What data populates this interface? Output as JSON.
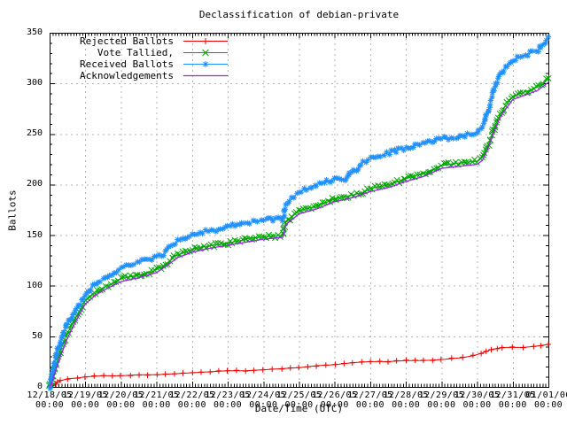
{
  "chart_data": {
    "type": "line",
    "title": "Declassification of debian-private",
    "xlabel": "Date/Time (UTC)",
    "ylabel": "Ballots",
    "ylim": [
      0,
      350
    ],
    "y_tick_step": 50,
    "y_minor_step": 10,
    "x_span_days": 14,
    "grid": true,
    "legend_position": "top-left-inside",
    "background": "#ffffff",
    "grid_color": "#b3b3b3",
    "axis_color": "#000000",
    "x_ticks": [
      {
        "date": "12/18/05",
        "time": "00:00"
      },
      {
        "date": "12/19/05",
        "time": "00:00"
      },
      {
        "date": "12/20/05",
        "time": "00:00"
      },
      {
        "date": "12/21/05",
        "time": "00:00"
      },
      {
        "date": "12/22/05",
        "time": "00:00"
      },
      {
        "date": "12/23/05",
        "time": "00:00"
      },
      {
        "date": "12/24/05",
        "time": "00:00"
      },
      {
        "date": "12/25/05",
        "time": "00:00"
      },
      {
        "date": "12/26/05",
        "time": "00:00"
      },
      {
        "date": "12/27/05",
        "time": "00:00"
      },
      {
        "date": "12/28/05",
        "time": "00:00"
      },
      {
        "date": "12/29/05",
        "time": "00:00"
      },
      {
        "date": "12/30/05",
        "time": "00:00"
      },
      {
        "date": "12/31/05",
        "time": "00:00"
      },
      {
        "date": "01/01/06",
        "time": "00:00"
      }
    ],
    "y_ticks": [
      0,
      50,
      100,
      150,
      200,
      250,
      300,
      350
    ],
    "series": [
      {
        "name": "rejected-ballots",
        "label": "Rejected Ballots",
        "color": "#ee0000",
        "marker": "plus",
        "marker_density_per_day": 2.6,
        "jitter": 0.5,
        "points": [
          [
            0,
            0
          ],
          [
            0.15,
            3
          ],
          [
            0.3,
            6
          ],
          [
            0.5,
            8
          ],
          [
            0.8,
            9
          ],
          [
            1,
            10
          ],
          [
            1.5,
            11
          ],
          [
            2,
            11
          ],
          [
            2.5,
            12
          ],
          [
            3,
            12
          ],
          [
            3.5,
            13
          ],
          [
            4,
            14
          ],
          [
            4.5,
            15
          ],
          [
            5,
            16
          ],
          [
            5.5,
            16
          ],
          [
            6,
            17
          ],
          [
            6.5,
            18
          ],
          [
            7,
            19
          ],
          [
            7.5,
            21
          ],
          [
            8,
            22
          ],
          [
            8.5,
            24
          ],
          [
            9,
            25
          ],
          [
            9.5,
            25
          ],
          [
            10,
            26
          ],
          [
            10.5,
            26
          ],
          [
            11,
            27
          ],
          [
            11.3,
            28
          ],
          [
            11.6,
            29
          ],
          [
            11.9,
            31
          ],
          [
            12.1,
            33
          ],
          [
            12.25,
            35
          ],
          [
            12.4,
            37
          ],
          [
            12.55,
            38
          ],
          [
            12.7,
            39
          ],
          [
            13,
            39
          ],
          [
            13.3,
            39
          ],
          [
            13.6,
            40
          ],
          [
            13.8,
            41
          ],
          [
            14,
            42
          ]
        ]
      },
      {
        "name": "vote-tallied",
        "label": "Vote Tallied,",
        "color": "#00a400",
        "marker": "cross",
        "marker_density_per_day": 13,
        "jitter": 2.0,
        "points": [
          [
            0,
            0
          ],
          [
            0.06,
            6
          ],
          [
            0.12,
            14
          ],
          [
            0.25,
            30
          ],
          [
            0.4,
            45
          ],
          [
            0.6,
            60
          ],
          [
            0.8,
            73
          ],
          [
            1,
            85
          ],
          [
            1.2,
            92
          ],
          [
            1.5,
            98
          ],
          [
            1.8,
            103
          ],
          [
            2,
            107
          ],
          [
            2.4,
            110
          ],
          [
            2.8,
            113
          ],
          [
            3,
            116
          ],
          [
            3.25,
            121
          ],
          [
            3.5,
            129
          ],
          [
            3.8,
            133
          ],
          [
            4,
            136
          ],
          [
            4.4,
            139
          ],
          [
            4.8,
            141
          ],
          [
            5,
            142
          ],
          [
            5.4,
            145
          ],
          [
            5.6,
            147
          ],
          [
            6,
            148
          ],
          [
            6.55,
            150
          ],
          [
            6.62,
            162
          ],
          [
            6.8,
            168
          ],
          [
            7,
            174
          ],
          [
            7.4,
            178
          ],
          [
            7.8,
            183
          ],
          [
            8,
            186
          ],
          [
            8.4,
            189
          ],
          [
            8.8,
            192
          ],
          [
            9,
            196
          ],
          [
            9.4,
            199
          ],
          [
            9.8,
            203
          ],
          [
            10,
            206
          ],
          [
            10.4,
            210
          ],
          [
            10.7,
            214
          ],
          [
            11,
            219
          ],
          [
            11.4,
            221
          ],
          [
            12,
            223
          ],
          [
            12.15,
            227
          ],
          [
            12.3,
            238
          ],
          [
            12.45,
            253
          ],
          [
            12.6,
            266
          ],
          [
            12.75,
            275
          ],
          [
            13,
            287
          ],
          [
            13.3,
            291
          ],
          [
            13.6,
            295
          ],
          [
            13.8,
            299
          ],
          [
            14,
            305
          ]
        ]
      },
      {
        "name": "received-ballots",
        "label": "Received Ballots",
        "color": "#1e90ff",
        "marker": "star",
        "marker_density_per_day": 13,
        "jitter": 2.0,
        "points": [
          [
            0,
            0
          ],
          [
            0.05,
            8
          ],
          [
            0.1,
            18
          ],
          [
            0.2,
            34
          ],
          [
            0.3,
            46
          ],
          [
            0.5,
            62
          ],
          [
            0.75,
            78
          ],
          [
            1,
            89
          ],
          [
            1.15,
            97
          ],
          [
            1.3,
            103
          ],
          [
            1.5,
            106
          ],
          [
            1.75,
            110
          ],
          [
            2,
            117
          ],
          [
            2.3,
            121
          ],
          [
            2.6,
            124
          ],
          [
            3,
            129
          ],
          [
            3.2,
            131
          ],
          [
            3.4,
            139
          ],
          [
            3.6,
            144
          ],
          [
            4,
            150
          ],
          [
            4.3,
            153
          ],
          [
            4.6,
            155
          ],
          [
            5,
            158
          ],
          [
            5.4,
            162
          ],
          [
            5.7,
            163
          ],
          [
            6,
            165
          ],
          [
            6.55,
            166
          ],
          [
            6.62,
            179
          ],
          [
            6.8,
            186
          ],
          [
            7,
            193
          ],
          [
            7.3,
            197
          ],
          [
            7.5,
            200
          ],
          [
            8,
            205
          ],
          [
            8.35,
            206
          ],
          [
            8.42,
            212
          ],
          [
            8.6,
            214
          ],
          [
            8.8,
            222
          ],
          [
            9,
            226
          ],
          [
            9.3,
            229
          ],
          [
            9.6,
            232
          ],
          [
            10,
            236
          ],
          [
            10.4,
            240
          ],
          [
            10.8,
            244
          ],
          [
            11,
            245
          ],
          [
            11.4,
            247
          ],
          [
            11.8,
            250
          ],
          [
            12,
            252
          ],
          [
            12.15,
            258
          ],
          [
            12.3,
            272
          ],
          [
            12.45,
            292
          ],
          [
            12.6,
            306
          ],
          [
            12.75,
            314
          ],
          [
            12.9,
            320
          ],
          [
            13,
            323
          ],
          [
            13.2,
            326
          ],
          [
            13.5,
            330
          ],
          [
            13.7,
            333
          ],
          [
            13.85,
            339
          ],
          [
            14,
            346
          ]
        ]
      },
      {
        "name": "acknowledgements",
        "label": "Acknowledgements",
        "color": "#a020f0",
        "marker": "none",
        "marker_density_per_day": 0,
        "jitter": 0,
        "points": [
          [
            0,
            0
          ],
          [
            0.07,
            5
          ],
          [
            0.15,
            14
          ],
          [
            0.3,
            30
          ],
          [
            0.5,
            48
          ],
          [
            0.75,
            66
          ],
          [
            1,
            82
          ],
          [
            1.3,
            91
          ],
          [
            1.6,
            97
          ],
          [
            2,
            104
          ],
          [
            2.5,
            108
          ],
          [
            3,
            113
          ],
          [
            3.3,
            120
          ],
          [
            3.6,
            128
          ],
          [
            4,
            133
          ],
          [
            4.5,
            137
          ],
          [
            5,
            140
          ],
          [
            5.5,
            143
          ],
          [
            6,
            146
          ],
          [
            6.55,
            148
          ],
          [
            6.62,
            160
          ],
          [
            7,
            171
          ],
          [
            7.5,
            176
          ],
          [
            8,
            183
          ],
          [
            8.5,
            187
          ],
          [
            9,
            193
          ],
          [
            9.5,
            197
          ],
          [
            10,
            203
          ],
          [
            10.5,
            208
          ],
          [
            11,
            216
          ],
          [
            11.5,
            218
          ],
          [
            12,
            220
          ],
          [
            12.15,
            224
          ],
          [
            12.3,
            235
          ],
          [
            12.45,
            250
          ],
          [
            12.6,
            263
          ],
          [
            12.75,
            272
          ],
          [
            13,
            284
          ],
          [
            13.4,
            289
          ],
          [
            13.7,
            293
          ],
          [
            14,
            301
          ]
        ]
      }
    ]
  }
}
